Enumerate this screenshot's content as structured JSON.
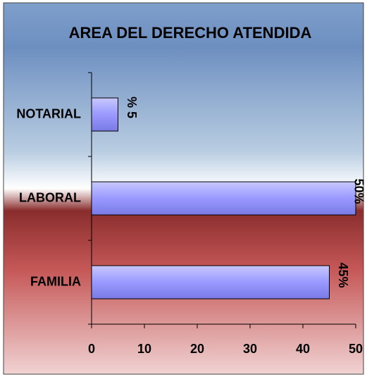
{
  "chart_data": {
    "type": "bar",
    "orientation": "horizontal",
    "title": "AREA DEL DERECHO ATENDIDA",
    "categories": [
      "NOTARIAL",
      "LABORAL",
      "FAMILIA"
    ],
    "values": [
      5,
      50,
      45
    ],
    "value_labels": [
      "% 5",
      "50%",
      "45%"
    ],
    "color": "#9999ff",
    "xlim": [
      0,
      50
    ],
    "xticks": [
      0,
      10,
      20,
      30,
      40,
      50
    ]
  }
}
